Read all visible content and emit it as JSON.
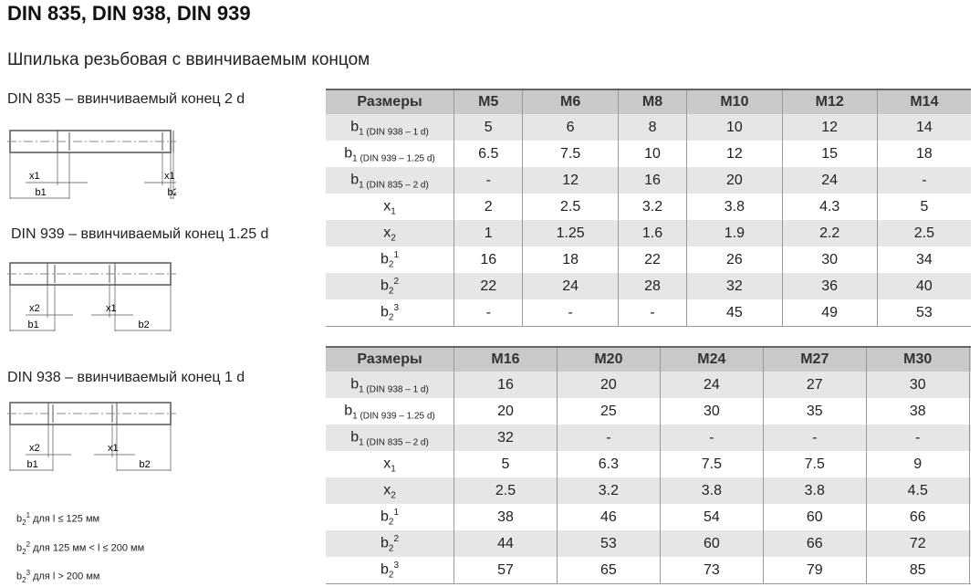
{
  "title": "DIN 835, DIN 938, DIN 939",
  "subtitle": "Шпилька резьбовая с ввинчиваемым концом",
  "drawings": [
    {
      "caption": "DIN 835 – ввинчиваемый конец 2 d",
      "left_x": "x1",
      "right_x": "x1",
      "b_left": "b1",
      "b_right": "b2"
    },
    {
      "caption": "DIN 939 – ввинчиваемый конец 1.25 d",
      "left_x": "x2",
      "right_x": "x1",
      "b_left": "b1",
      "b_right": "b2"
    },
    {
      "caption": "DIN 938 – ввинчиваемый конец 1 d",
      "left_x": "x2",
      "right_x": "x1",
      "b_left": "b1",
      "b_right": "b2"
    }
  ],
  "notes": [
    {
      "base": "b",
      "sub": "2",
      "sup": "1",
      "text": " для l ≤ 125 мм"
    },
    {
      "base": "b",
      "sub": "2",
      "sup": "2",
      "text": " для 125 мм < l ≤ 200 мм"
    },
    {
      "base": "b",
      "sub": "2",
      "sup": "3",
      "text": " для l > 200 мм"
    }
  ],
  "row_labels": [
    {
      "base": "b",
      "sub": "1 (DIN 938 – 1 d)",
      "sup": ""
    },
    {
      "base": "b",
      "sub": "1 (DIN 939 – 1.25 d)",
      "sup": ""
    },
    {
      "base": "b",
      "sub": "1 (DIN 835 – 2 d)",
      "sup": ""
    },
    {
      "base": "x",
      "sub": "1",
      "sup": ""
    },
    {
      "base": "x",
      "sub": "2",
      "sup": ""
    },
    {
      "base": "b",
      "sub": "2",
      "sup": "1"
    },
    {
      "base": "b",
      "sub": "2",
      "sup": "2"
    },
    {
      "base": "b",
      "sub": "2",
      "sup": "3"
    }
  ],
  "tables": [
    {
      "header": "Размеры",
      "sizes": [
        "M5",
        "M6",
        "M8",
        "M10",
        "M12",
        "M14"
      ],
      "rows": [
        [
          "5",
          "6",
          "8",
          "10",
          "12",
          "14"
        ],
        [
          "6.5",
          "7.5",
          "10",
          "12",
          "15",
          "18"
        ],
        [
          "-",
          "12",
          "16",
          "20",
          "24",
          "-"
        ],
        [
          "2",
          "2.5",
          "3.2",
          "3.8",
          "4.3",
          "5"
        ],
        [
          "1",
          "1.25",
          "1.6",
          "1.9",
          "2.2",
          "2.5"
        ],
        [
          "16",
          "18",
          "22",
          "26",
          "30",
          "34"
        ],
        [
          "22",
          "24",
          "28",
          "32",
          "36",
          "40"
        ],
        [
          "-",
          "-",
          "-",
          "45",
          "49",
          "53"
        ]
      ]
    },
    {
      "header": "Размеры",
      "sizes": [
        "M16",
        "M20",
        "M24",
        "M27",
        "M30",
        ""
      ],
      "rows": [
        [
          "16",
          "20",
          "24",
          "27",
          "30",
          ""
        ],
        [
          "20",
          "25",
          "30",
          "35",
          "38",
          ""
        ],
        [
          "32",
          "-",
          "-",
          "-",
          "-",
          ""
        ],
        [
          "5",
          "6.3",
          "7.5",
          "7.5",
          "9",
          ""
        ],
        [
          "2.5",
          "3.2",
          "3.8",
          "3.8",
          "4.5",
          ""
        ],
        [
          "38",
          "46",
          "54",
          "60",
          "66",
          ""
        ],
        [
          "44",
          "53",
          "60",
          "66",
          "72",
          ""
        ],
        [
          "57",
          "65",
          "73",
          "79",
          "85",
          ""
        ]
      ]
    }
  ]
}
